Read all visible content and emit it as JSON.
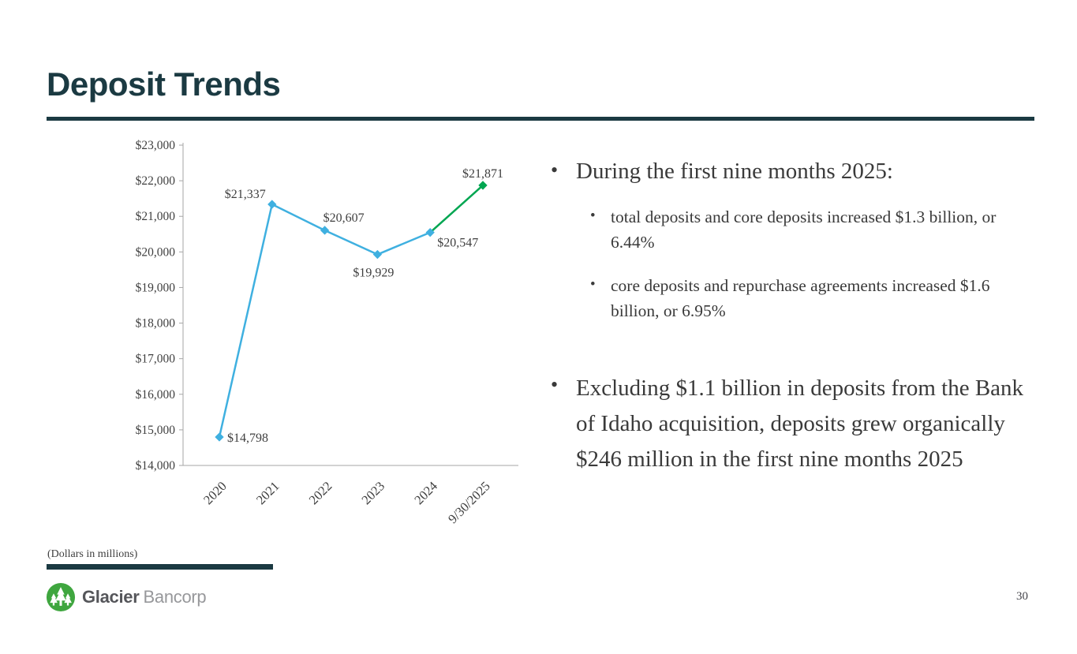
{
  "slide": {
    "title": "Deposit Trends",
    "footnote": "(Dollars in millions)",
    "page_number": "30"
  },
  "logo": {
    "brand_bold": "Glacier",
    "brand_light": "Bancorp"
  },
  "content": {
    "bullet_char": "•",
    "bullet1": "During the first nine months 2025:",
    "bullet1_sub1": "total deposits and core deposits increased $1.3 billion, or 6.44%",
    "bullet1_sub2": "core deposits and repurchase agreements increased $1.6 billion, or 6.95%",
    "bullet2": "Excluding $1.1 billion in deposits from the Bank of Idaho acquisition, deposits grew organically $246 million in the first nine months 2025"
  },
  "chart_data": {
    "type": "line",
    "title": "",
    "xlabel": "",
    "ylabel": "",
    "categories": [
      "2020",
      "2021",
      "2022",
      "2023",
      "2024",
      "9/30/2025"
    ],
    "values": [
      14798,
      21337,
      20607,
      19929,
      20547,
      21871
    ],
    "data_labels": [
      "$14,798",
      "$21,337",
      "$20,607",
      "$19,929",
      "$20,547",
      "$21,871"
    ],
    "ylim": [
      14000,
      23000
    ],
    "ytick_step": 1000,
    "ytick_labels": [
      "$23,000",
      "$22,000",
      "$21,000",
      "$20,000",
      "$19,000",
      "$18,000",
      "$17,000",
      "$16,000",
      "$15,000",
      "$14,000"
    ],
    "grid": false,
    "legend": "none",
    "marker": "diamond",
    "colors": {
      "historical": "#3FB0E0",
      "latest": "#00A651"
    },
    "green_from_index": 4
  },
  "colors": {
    "accent_dark": "#1B3A42",
    "body_text": "#3A3A3A",
    "logo_green": "#3FA63F"
  }
}
